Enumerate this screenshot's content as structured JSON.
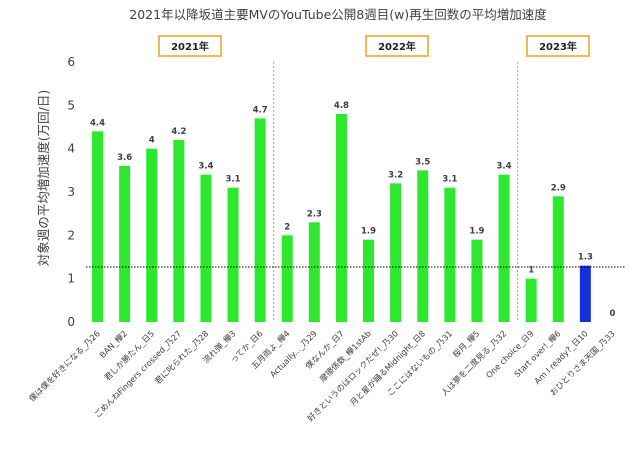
{
  "chart_data": {
    "type": "bar",
    "title": "2021年以降坂道主要MVのYouTube公開8週目(w)再生回数の平均増加速度",
    "ylabel": "対象週の平均増加速度(万回/日)",
    "xlabel": "",
    "ylim": [
      0,
      6
    ],
    "yticks": [
      "0",
      "1",
      "2",
      "3",
      "4",
      "5",
      "6"
    ],
    "grid": false,
    "legend": "none",
    "year_labels": [
      "2021年",
      "2022年",
      "2023年"
    ],
    "reference_line": 1.27,
    "categories": [
      "僕は僕を好きになる_乃26",
      "BAN_欅2",
      "君しか勝たん_日5",
      "ごめんねFingers crossed_乃27",
      "君に叱られた_乃28",
      "流れ弾_欅3",
      "ってか_日6",
      "五月雨よ_欅4",
      "Actually..._乃29",
      "僕なんか_日7",
      "摩擦係数_欅1stAb",
      "好きというのはロックだぜ!_乃30",
      "月と星が踊るMidnight_日8",
      "ここにはないもの_乃31",
      "桜月_欅5",
      "人は夢を二度見る_乃32",
      "One choice_日9",
      "Start over!_欅6",
      "Am I ready?_日10",
      "おひとりさま天国_乃33"
    ],
    "values": [
      4.4,
      3.6,
      4,
      4.2,
      3.4,
      3.1,
      4.7,
      2,
      2.3,
      4.8,
      1.9,
      3.2,
      3.5,
      3.1,
      1.9,
      3.4,
      1,
      2.9,
      1.3,
      0
    ],
    "data_labels": [
      "4.4",
      "3.6",
      "4",
      "4.2",
      "3.4",
      "3.1",
      "4.7",
      "2",
      "2.3",
      "4.8",
      "1.9",
      "3.2",
      "3.5",
      "3.1",
      "1.9",
      "3.4",
      "1",
      "2.9",
      "1.3",
      "0"
    ],
    "colors": {
      "default": "#2ee82e",
      "highlight": "#1530d8",
      "highlight_index": 18,
      "year_box": "#f2a825",
      "divider": "#e0a030",
      "reference": "#000000"
    }
  }
}
